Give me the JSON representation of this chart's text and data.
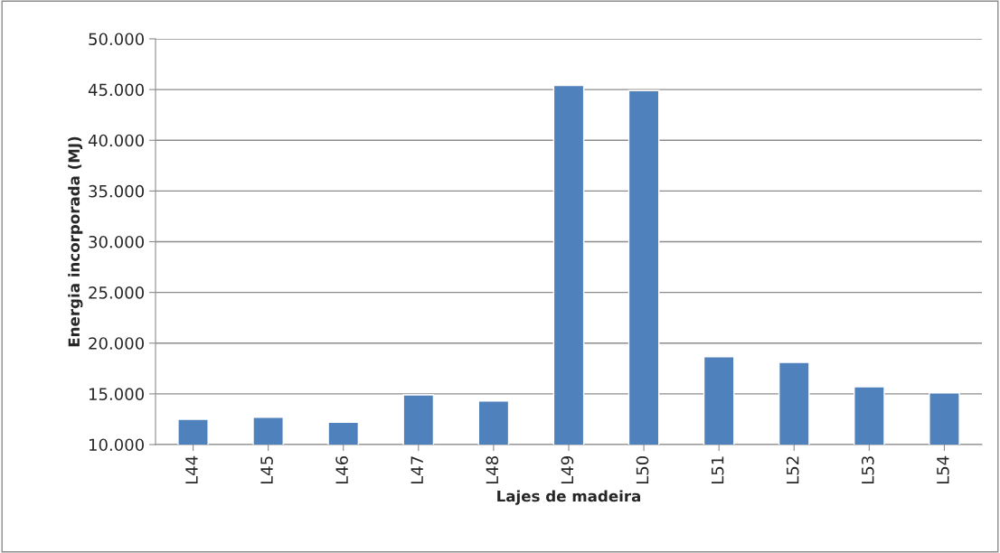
{
  "chart_data": {
    "type": "bar",
    "xlabel": "Lajes de madeira",
    "ylabel": "Energia incorporada (MJ)",
    "categories": [
      "L44",
      "L45",
      "L46",
      "L47",
      "L48",
      "L49",
      "L50",
      "L51",
      "L52",
      "L53",
      "L54"
    ],
    "values": [
      12500,
      12700,
      12200,
      14900,
      14300,
      45400,
      44900,
      18650,
      18100,
      15700,
      15100
    ],
    "color": "#4f81bd",
    "ylim": [
      10000,
      50000
    ],
    "yticks": [
      {
        "value": 10000,
        "label": "10.000"
      },
      {
        "value": 15000,
        "label": "15.000"
      },
      {
        "value": 20000,
        "label": "20.000"
      },
      {
        "value": 25000,
        "label": "25.000"
      },
      {
        "value": 30000,
        "label": "30.000"
      },
      {
        "value": 35000,
        "label": "35.000"
      },
      {
        "value": 40000,
        "label": "40.000"
      },
      {
        "value": 45000,
        "label": "45.000"
      },
      {
        "value": 50000,
        "label": "50.000"
      }
    ],
    "grid": "y"
  }
}
